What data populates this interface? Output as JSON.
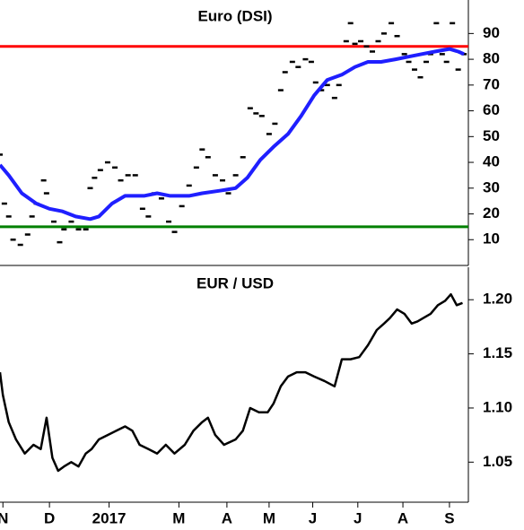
{
  "chart_data": [
    {
      "type": "line",
      "title": "Euro (DSI)",
      "xlim": [
        0,
        322
      ],
      "ylim": [
        0,
        103
      ],
      "yticks": [
        10,
        20,
        30,
        40,
        50,
        60,
        70,
        80,
        90
      ],
      "hlines": [
        {
          "value": 85,
          "color": "#ff0000"
        },
        {
          "value": 15,
          "color": "#008000"
        }
      ],
      "series": [
        {
          "color": "#000000",
          "marker": "dash",
          "x": [
            0,
            3,
            6,
            9,
            14,
            19,
            22,
            25,
            30,
            32,
            37,
            41,
            44,
            49,
            54,
            59,
            62,
            65,
            69,
            74,
            79,
            83,
            88,
            93,
            98,
            102,
            106,
            111,
            116,
            120,
            125,
            130,
            135,
            139,
            143,
            148,
            153,
            157,
            162,
            167,
            172,
            176,
            180,
            185,
            189,
            193,
            196,
            201,
            205,
            210,
            214,
            217,
            221,
            225,
            230,
            233,
            238,
            241,
            244,
            248,
            252,
            256,
            260,
            264,
            269,
            273,
            278,
            281,
            285,
            289,
            293,
            296,
            300,
            304,
            307,
            311,
            315,
            319
          ],
          "values": [
            43,
            24,
            19,
            10,
            8,
            12,
            19,
            24,
            33,
            28,
            17,
            9,
            14,
            17,
            14,
            14,
            30,
            34,
            37,
            40,
            38,
            33,
            35,
            35,
            22,
            19,
            28,
            26,
            17,
            13,
            23,
            31,
            38,
            45,
            42,
            35,
            33,
            28,
            35,
            42,
            61,
            59,
            58,
            51,
            55,
            68,
            75,
            79,
            77,
            80,
            79,
            71,
            68,
            70,
            65,
            70,
            87,
            94,
            86,
            87,
            85,
            83,
            87,
            90,
            94,
            89,
            82,
            79,
            76,
            73,
            79,
            82,
            94,
            82,
            79,
            94,
            76,
            82
          ]
        },
        {
          "color": "#1f1fff",
          "marker": "line",
          "x": [
            0,
            6,
            15,
            25,
            34,
            43,
            52,
            62,
            68,
            77,
            86,
            99,
            108,
            117,
            130,
            139,
            151,
            162,
            170,
            179,
            188,
            198,
            207,
            216,
            225,
            235,
            244,
            253,
            262,
            272,
            281,
            290,
            299,
            309,
            315,
            319
          ],
          "values": [
            39,
            35,
            28,
            24,
            22,
            21,
            19,
            18,
            19,
            24,
            27,
            27,
            28,
            27,
            27,
            28,
            29,
            30,
            34,
            41,
            46,
            51,
            58,
            66,
            72,
            74,
            77,
            79,
            79,
            80,
            81,
            82,
            83,
            84,
            83,
            82
          ]
        }
      ]
    },
    {
      "type": "line",
      "title": "EUR / USD",
      "xlim": [
        0,
        322
      ],
      "ylim": [
        1.013,
        1.23
      ],
      "yticks": [
        {
          "value": 1.05,
          "label": "1.05"
        },
        {
          "value": 1.1,
          "label": "1.10"
        },
        1.15,
        {
          "value": 1.2,
          "label": "1.20"
        }
      ],
      "xticks": [
        {
          "value": 2,
          "label": "N"
        },
        {
          "value": 34,
          "label": "D"
        },
        {
          "value": 75,
          "label": "2017"
        },
        {
          "value": 123,
          "label": "M"
        },
        {
          "value": 156,
          "label": "A"
        },
        {
          "value": 185,
          "label": "M"
        },
        {
          "value": 215,
          "label": "J"
        },
        {
          "value": 246,
          "label": "J"
        },
        {
          "value": 277,
          "label": "A"
        },
        {
          "value": 309,
          "label": "S"
        }
      ],
      "series": [
        {
          "color": "#000000",
          "marker": "line",
          "x": [
            0,
            2,
            6,
            11,
            17,
            23,
            28,
            32,
            36,
            40,
            44,
            49,
            54,
            59,
            63,
            68,
            74,
            80,
            86,
            91,
            96,
            102,
            108,
            114,
            120,
            127,
            133,
            139,
            143,
            148,
            154,
            162,
            167,
            172,
            178,
            184,
            188,
            193,
            198,
            204,
            210,
            216,
            223,
            230,
            235,
            241,
            247,
            253,
            259,
            264,
            268,
            273,
            278,
            283,
            287,
            291,
            296,
            301,
            306,
            310,
            314,
            318
          ],
          "values": [
            1.133,
            1.112,
            1.087,
            1.071,
            1.058,
            1.066,
            1.062,
            1.091,
            1.054,
            1.042,
            1.046,
            1.05,
            1.046,
            1.058,
            1.062,
            1.071,
            1.075,
            1.079,
            1.083,
            1.079,
            1.066,
            1.062,
            1.058,
            1.066,
            1.058,
            1.066,
            1.079,
            1.087,
            1.091,
            1.075,
            1.066,
            1.071,
            1.079,
            1.1,
            1.096,
            1.096,
            1.104,
            1.12,
            1.129,
            1.133,
            1.133,
            1.129,
            1.125,
            1.12,
            1.145,
            1.145,
            1.147,
            1.158,
            1.172,
            1.178,
            1.183,
            1.191,
            1.187,
            1.178,
            1.18,
            1.183,
            1.187,
            1.195,
            1.199,
            1.205,
            1.195,
            1.197
          ]
        }
      ]
    }
  ]
}
